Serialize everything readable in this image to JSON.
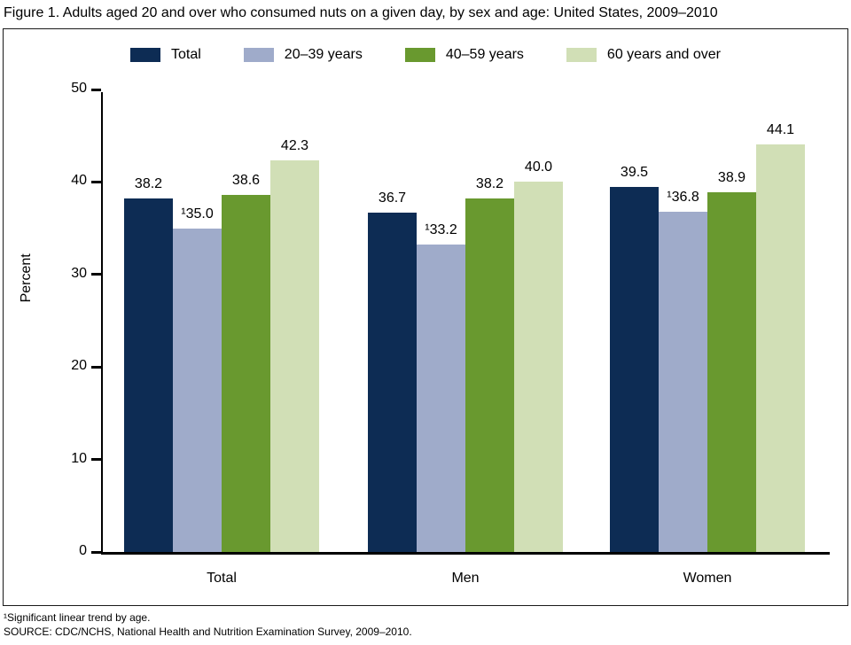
{
  "figure": {
    "title": "Figure 1. Adults aged 20 and over who consumed nuts on a given day, by sex and age: United States, 2009–2010",
    "footnotes": [
      "¹Significant linear trend by age.",
      "SOURCE: CDC/NCHS, National Health and Nutrition Examination Survey, 2009–2010."
    ]
  },
  "colors": {
    "navy": "#0d2c54",
    "periwinkle": "#9fabca",
    "green": "#69992f",
    "light_green": "#d1dfb6",
    "axis": "#000000"
  },
  "chart_data": {
    "type": "bar",
    "title": "Adults aged 20 and over who consumed nuts on a given day, by sex and age: United States, 2009–2010",
    "ylabel": "Percent",
    "xlabel": "",
    "ylim": [
      0,
      50
    ],
    "yticks": [
      0,
      10,
      20,
      30,
      40,
      50
    ],
    "grid": false,
    "legend_position": "top-center",
    "categories": [
      "Total",
      "Men",
      "Women"
    ],
    "series": [
      {
        "name": "Total",
        "color": "#0d2c54",
        "values": [
          38.2,
          36.7,
          39.5
        ],
        "labels": [
          "38.2",
          "36.7",
          "39.5"
        ]
      },
      {
        "name": "20–39 years",
        "color": "#9fabca",
        "values": [
          35.0,
          33.2,
          36.8
        ],
        "labels": [
          "¹35.0",
          "¹33.2",
          "¹36.8"
        ]
      },
      {
        "name": "40–59 years",
        "color": "#69992f",
        "values": [
          38.6,
          38.2,
          38.9
        ],
        "labels": [
          "38.6",
          "38.2",
          "38.9"
        ]
      },
      {
        "name": "60 years and over",
        "color": "#d1dfb6",
        "values": [
          42.3,
          40.0,
          44.1
        ],
        "labels": [
          "42.3",
          "40.0",
          "44.1"
        ]
      }
    ]
  }
}
